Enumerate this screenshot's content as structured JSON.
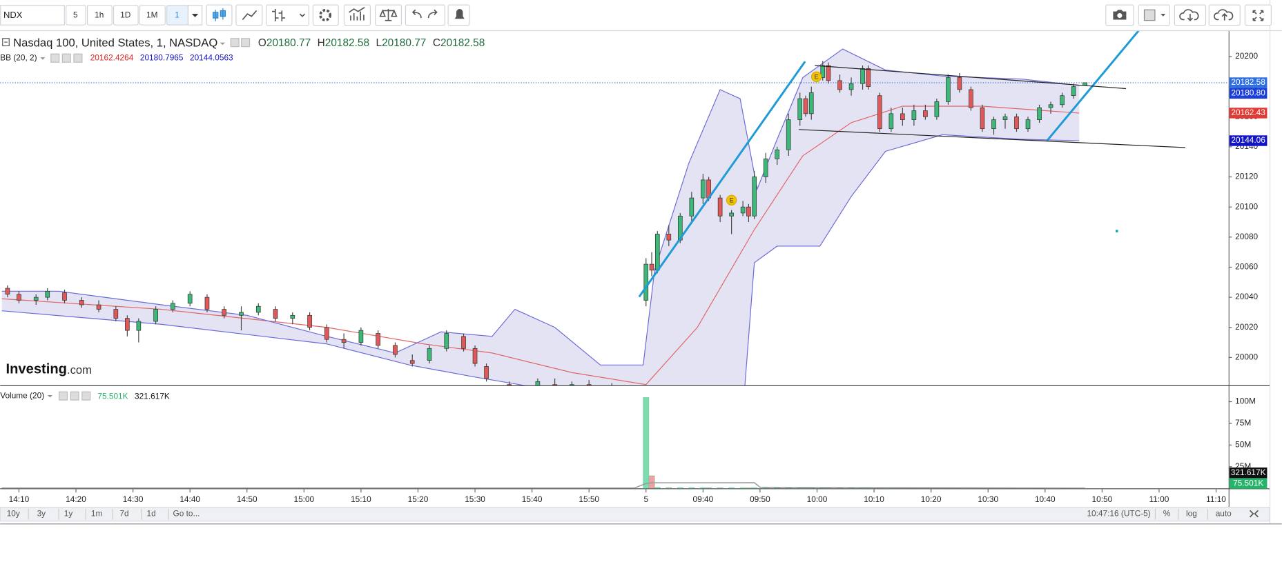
{
  "toolbar": {
    "symbol": "NDX",
    "intervals": [
      "5",
      "1h",
      "1D",
      "1M",
      "1"
    ]
  },
  "chart_data": [
    {
      "type": "candlestick",
      "title": "Nasdaq 100, United States, 1, NASDAQ",
      "ohlc_legend": [
        {
          "label": "O",
          "value": 20180.77
        },
        {
          "label": "H",
          "value": 20182.58
        },
        {
          "label": "L",
          "value": 20180.77
        },
        {
          "label": "C",
          "value": 20182.58
        }
      ],
      "indicator": {
        "name": "BB (20, 2)",
        "values": [
          20162.4264,
          20180.7965,
          20144.0563
        ]
      },
      "watermark": {
        "bold": "Investing",
        "rest": ".com"
      },
      "up_color": "#3cb878",
      "down_color": "#e05858",
      "xlim": [
        -3.3,
        212.2
      ],
      "ylim": [
        19981.5,
        20216.9
      ],
      "yticks": [
        20000,
        20020,
        20040,
        20060,
        20080,
        20100,
        20120,
        20140,
        20160,
        20180,
        20200
      ],
      "xticks": [
        {
          "value": 0,
          "label": "14:10"
        },
        {
          "value": 10,
          "label": "14:20"
        },
        {
          "value": 20,
          "label": "14:30"
        },
        {
          "value": 30,
          "label": "14:40"
        },
        {
          "value": 40,
          "label": "14:50"
        },
        {
          "value": 50,
          "label": "15:00"
        },
        {
          "value": 60,
          "label": "15:10"
        },
        {
          "value": 70,
          "label": "15:20"
        },
        {
          "value": 80,
          "label": "15:30"
        },
        {
          "value": 90,
          "label": "15:40"
        },
        {
          "value": 100,
          "label": "15:50"
        },
        {
          "value": 110,
          "label": "5"
        },
        {
          "value": 120,
          "label": "09:40"
        },
        {
          "value": 130,
          "label": "09:50"
        },
        {
          "value": 140,
          "label": "10:00"
        },
        {
          "value": 150,
          "label": "10:10"
        },
        {
          "value": 160,
          "label": "10:20"
        },
        {
          "value": 170,
          "label": "10:30"
        },
        {
          "value": 180,
          "label": "10:40"
        },
        {
          "value": 190,
          "label": "10:50"
        },
        {
          "value": 200,
          "label": "11:00"
        },
        {
          "value": 210,
          "label": "11:10"
        }
      ],
      "x": [
        -2,
        0,
        3,
        5,
        8,
        11,
        14,
        17,
        19,
        21,
        24,
        27,
        30,
        33,
        36,
        39,
        42,
        45,
        48,
        51,
        54,
        57,
        60,
        63,
        66,
        69,
        72,
        75,
        78,
        80,
        82,
        86,
        91,
        94,
        97,
        100,
        104,
        110,
        111,
        112,
        114,
        116,
        118,
        120,
        121,
        123,
        125,
        127,
        128,
        129,
        131,
        133,
        135,
        137,
        138,
        139,
        141,
        142,
        144,
        146,
        148,
        149,
        151,
        153,
        155,
        157,
        159,
        161,
        163,
        165,
        167,
        169,
        171,
        173,
        175,
        177,
        179,
        181,
        183,
        185,
        187
      ],
      "open": [
        20046,
        20042,
        20038,
        20040,
        20043,
        20038,
        20035,
        20032,
        20026,
        20018,
        20024,
        20032,
        20036,
        20040,
        20032,
        20028,
        20030,
        20032,
        20026,
        20028,
        20020,
        20012,
        20010,
        20016,
        20008,
        19998,
        19998,
        20006,
        20014,
        20006,
        19994,
        19982,
        19978,
        19982,
        19980,
        19982,
        19980,
        20038,
        20062,
        20058,
        20082,
        20078,
        20094,
        20106,
        20118,
        20106,
        20094,
        20096,
        20100,
        20094,
        20120,
        20132,
        20138,
        20158,
        20172,
        20162,
        20186,
        20194,
        20184,
        20178,
        20182,
        20192,
        20174,
        20152,
        20162,
        20158,
        20164,
        20160,
        20170,
        20186,
        20178,
        20166,
        20152,
        20158,
        20160,
        20152,
        20158,
        20166,
        20168,
        20174,
        20180.77
      ],
      "high": [
        20048,
        20044,
        20042,
        20046,
        20045,
        20040,
        20038,
        20034,
        20028,
        20026,
        20034,
        20038,
        20044,
        20042,
        20034,
        20034,
        20036,
        20034,
        20030,
        20030,
        20022,
        20016,
        20020,
        20018,
        20010,
        20002,
        20008,
        20018,
        20016,
        20008,
        19996,
        19984,
        19986,
        19986,
        19984,
        19985,
        19983,
        20066,
        20070,
        20084,
        20088,
        20096,
        20110,
        20122,
        20120,
        20108,
        20098,
        20104,
        20102,
        20124,
        20136,
        20140,
        20162,
        20176,
        20174,
        20180,
        20197,
        20196,
        20188,
        20186,
        20194,
        20194,
        20176,
        20166,
        20166,
        20168,
        20168,
        20172,
        20188,
        20189,
        20180,
        20168,
        20160,
        20162,
        20162,
        20160,
        20168,
        20170,
        20176,
        20182,
        20182.58
      ],
      "low": [
        20040,
        20036,
        20035,
        20038,
        20036,
        20033,
        20030,
        20024,
        20014,
        20010,
        20022,
        20030,
        20034,
        20030,
        20026,
        20018,
        20028,
        20024,
        20022,
        20018,
        20010,
        20006,
        20008,
        20006,
        20000,
        19994,
        19996,
        20004,
        20004,
        19994,
        19984,
        19974,
        19976,
        19978,
        19976,
        19979,
        19976,
        20034,
        20054,
        20056,
        20074,
        20076,
        20090,
        20102,
        20104,
        20090,
        20082,
        20094,
        20090,
        20092,
        20116,
        20128,
        20134,
        20154,
        20160,
        20158,
        20184,
        20182,
        20176,
        20174,
        20178,
        20178,
        20150,
        20150,
        20154,
        20154,
        20158,
        20158,
        20168,
        20176,
        20164,
        20150,
        20148,
        20152,
        20150,
        20150,
        20156,
        20162,
        20166,
        20172,
        20180.77
      ],
      "close": [
        20042,
        20038,
        20040,
        20044,
        20038,
        20035,
        20032,
        20026,
        20018,
        20024,
        20032,
        20036,
        20042,
        20032,
        20028,
        20030,
        20034,
        20026,
        20028,
        20020,
        20012,
        20010,
        20018,
        20008,
        20002,
        19996,
        20006,
        20016,
        20006,
        19996,
        19986,
        19976,
        19984,
        19980,
        19982,
        19980,
        19978,
        20062,
        20058,
        20082,
        20078,
        20094,
        20106,
        20118,
        20106,
        20094,
        20096,
        20100,
        20094,
        20120,
        20132,
        20138,
        20158,
        20172,
        20162,
        20176,
        20194,
        20184,
        20178,
        20182,
        20192,
        20180,
        20152,
        20162,
        20158,
        20164,
        20160,
        20170,
        20186,
        20178,
        20166,
        20152,
        20158,
        20160,
        20152,
        20158,
        20166,
        20168,
        20174,
        20180,
        20182.58
      ],
      "bands": [
        {
          "color": "#e06666",
          "x": [
            -3,
            25,
            54,
            71,
            83,
            97,
            110,
            119,
            129,
            137.5,
            146,
            155,
            169,
            186
          ],
          "values": [
            20039,
            20032,
            20020,
            20009,
            20003,
            19990,
            19982,
            20020,
            20085,
            20134,
            20156,
            20167,
            20167,
            20162.4264
          ]
        },
        {
          "color": "#6a6ad8",
          "x": [
            -3,
            7,
            25,
            40,
            53,
            66,
            74,
            83,
            87,
            94,
            102,
            109.5,
            111.5,
            117.5,
            123,
            126.5,
            129.5,
            133,
            137.5,
            144.5,
            152,
            162,
            176,
            186
          ],
          "values": [
            20044,
            20044,
            20035,
            20028,
            20015,
            20003,
            20017,
            20014,
            20032,
            20020,
            19995,
            19995,
            20058,
            20129,
            20178,
            20172,
            20112,
            20145,
            20186,
            20205,
            20191,
            20187,
            20185,
            20180.7965
          ]
        },
        {
          "color": "#6a6ad8",
          "x": [
            -3,
            25,
            54,
            68.5,
            80,
            97,
            110,
            119,
            126.5,
            129,
            133,
            140.5,
            146,
            152,
            162,
            176,
            186
          ],
          "values": [
            20031,
            20022,
            20009,
            19995,
            19987,
            19976,
            19976,
            19940,
            19940,
            20063,
            20074,
            20074,
            20107,
            20137,
            20148,
            20145,
            20144.0563
          ]
        }
      ],
      "band_fill": "#d9d9f0",
      "price_labels": [
        {
          "value": 20182.58,
          "color": "#2f6fe0"
        },
        {
          "value": 20180.8,
          "label": "20180.80",
          "color": "#1a3fd8"
        },
        {
          "value": 20162.43,
          "color": "#e53935"
        },
        {
          "value": 20144.06,
          "color": "#1515c8"
        }
      ],
      "drawings": [
        {
          "color": "#1e9bd7",
          "x": [
            108.8,
            137.9
          ],
          "y": [
            20040.3,
            20196.7
          ]
        },
        {
          "color": "#1e9bd7",
          "x": [
            180.3,
            196.7
          ],
          "y": [
            20143.9,
            20218.5
          ]
        },
        {
          "color": "#222222",
          "x": [
            139.6,
            194.2
          ],
          "y": [
            20194.0,
            20178.7
          ]
        },
        {
          "color": "#222222",
          "x": [
            136.8,
            204.6
          ],
          "y": [
            20151.5,
            20139.5
          ]
        }
      ],
      "events": [
        {
          "x": 139.9,
          "label": "E"
        },
        {
          "x": 125,
          "label": "E"
        }
      ]
    },
    {
      "type": "volume",
      "title": "Volume (20)",
      "ylim": [
        0,
        117000000
      ],
      "yticks": [
        {
          "value": 25000000,
          "label": "25M"
        },
        {
          "value": 50000000,
          "label": "50M"
        },
        {
          "value": 75000000,
          "label": "75M"
        },
        {
          "value": 100000000,
          "label": "100M"
        }
      ],
      "values": [
        520000,
        480000,
        450000,
        470000,
        430000,
        440000,
        450000,
        500000,
        620000,
        580000,
        430000,
        400000,
        420000,
        460000,
        430000,
        510000,
        420000,
        400000,
        410000,
        460000,
        500000,
        470000,
        430000,
        420000,
        510000,
        540000,
        470000,
        500000,
        460000,
        550000,
        580000,
        520000,
        430000,
        420000,
        390000,
        410000,
        460000,
        104800000,
        14500000,
        1100000,
        900000,
        850000,
        800000,
        820000,
        760000,
        740000,
        700000,
        620000,
        640000,
        860000,
        760000,
        680000,
        760000,
        740000,
        660000,
        680000,
        760000,
        640000,
        580000,
        540000,
        540000,
        560000,
        660000,
        580000,
        500000,
        500000,
        460000,
        500000,
        540000,
        500000,
        500000,
        540000,
        460000,
        420000,
        420000,
        420000,
        430000,
        420000,
        450000,
        420000,
        75501
      ],
      "up_color": "#7fdcb0",
      "down_color": "#f0a0a0",
      "ma": {
        "color": "#9a9a9a",
        "x": [
          -3,
          108,
          110,
          111,
          129,
          130,
          131,
          187
        ],
        "values": [
          480000,
          470000,
          5700000,
          6400000,
          6500000,
          1300000,
          1200000,
          321617
        ]
      },
      "axis_labels": [
        {
          "value": 321617,
          "label": "321.617K",
          "color": "#111111"
        },
        {
          "value": 75501,
          "label": "75.501K",
          "color": "#26b36a"
        }
      ]
    }
  ],
  "bottom_bar": {
    "ranges": [
      "10y",
      "3y",
      "1y",
      "1m",
      "7d",
      "1d"
    ],
    "goto": "Go to...",
    "clock": "10:47:16 (UTC-5)",
    "scale_buttons": [
      "%",
      "log",
      "auto"
    ]
  }
}
